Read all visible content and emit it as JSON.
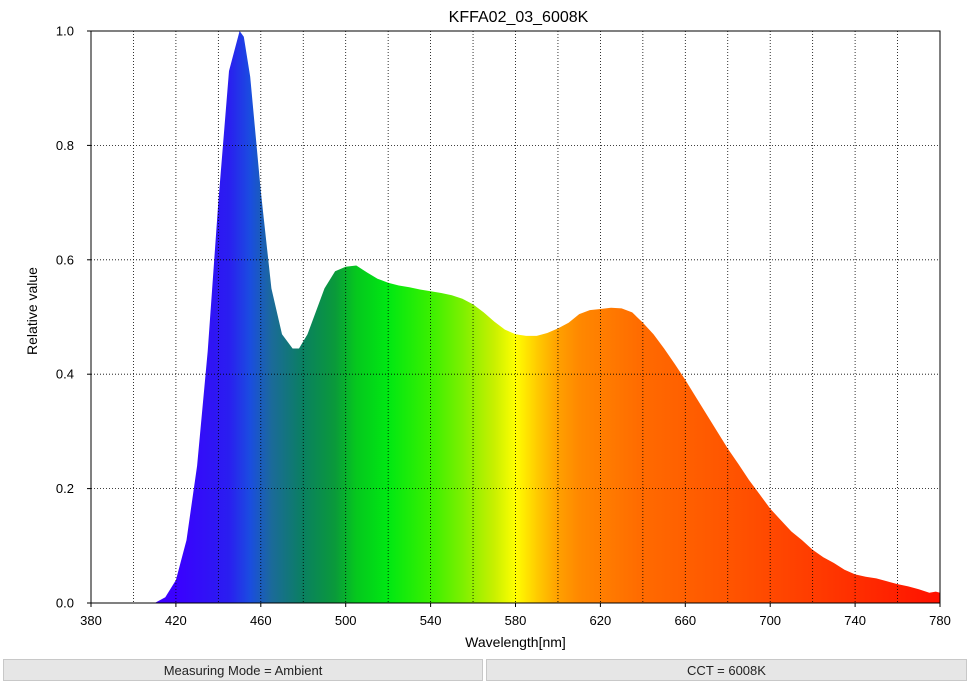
{
  "chart_data": {
    "type": "area",
    "title": "KFFA02_03_6008K",
    "xlabel": "Wavelength[nm]",
    "ylabel": "Relative value",
    "xlim": [
      380,
      780
    ],
    "ylim": [
      0,
      1.0
    ],
    "xticks": [
      380,
      420,
      460,
      500,
      540,
      580,
      620,
      660,
      700,
      740,
      780
    ],
    "yticks": [
      0.0,
      0.2,
      0.4,
      0.6,
      0.8,
      1.0
    ],
    "ytick_labels": [
      "0.0",
      "0.2",
      "0.4",
      "0.6",
      "0.8",
      "1.0"
    ],
    "grid": true,
    "fill": "spectral-gradient",
    "x": [
      410,
      415,
      420,
      425,
      430,
      435,
      440,
      445,
      450,
      452,
      455,
      460,
      465,
      470,
      475,
      478,
      482,
      485,
      490,
      495,
      500,
      505,
      510,
      515,
      520,
      525,
      530,
      535,
      540,
      545,
      550,
      555,
      560,
      565,
      570,
      575,
      580,
      585,
      590,
      595,
      600,
      605,
      610,
      615,
      620,
      625,
      630,
      635,
      640,
      645,
      650,
      655,
      660,
      665,
      670,
      675,
      680,
      685,
      690,
      695,
      700,
      705,
      710,
      715,
      720,
      725,
      730,
      735,
      740,
      745,
      750,
      755,
      760,
      765,
      770,
      775,
      778,
      780
    ],
    "y": [
      0.0,
      0.01,
      0.04,
      0.11,
      0.24,
      0.44,
      0.7,
      0.93,
      1.0,
      0.99,
      0.92,
      0.72,
      0.55,
      0.47,
      0.445,
      0.445,
      0.47,
      0.5,
      0.55,
      0.58,
      0.588,
      0.59,
      0.578,
      0.567,
      0.56,
      0.555,
      0.552,
      0.548,
      0.545,
      0.542,
      0.538,
      0.532,
      0.522,
      0.508,
      0.492,
      0.478,
      0.47,
      0.467,
      0.467,
      0.472,
      0.48,
      0.49,
      0.505,
      0.512,
      0.514,
      0.516,
      0.515,
      0.508,
      0.49,
      0.47,
      0.445,
      0.418,
      0.39,
      0.36,
      0.33,
      0.3,
      0.27,
      0.243,
      0.215,
      0.19,
      0.165,
      0.145,
      0.125,
      0.11,
      0.093,
      0.08,
      0.07,
      0.058,
      0.05,
      0.046,
      0.043,
      0.038,
      0.033,
      0.029,
      0.024,
      0.018,
      0.02,
      0.018
    ]
  },
  "footer": {
    "measuring_mode": "Measuring Mode = Ambient",
    "cct": "CCT = 6008K"
  }
}
